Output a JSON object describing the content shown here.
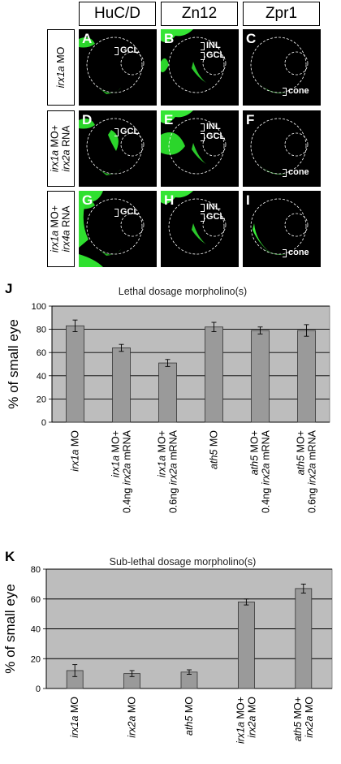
{
  "figure": {
    "columns": [
      "HuC/D",
      "Zn12",
      "Zpr1"
    ],
    "rows": [
      {
        "gene": "irx1a",
        "rest": " MO",
        "line2_gene": "",
        "line2_rest": ""
      },
      {
        "gene": "irx1a",
        "rest": " MO+",
        "line2_gene": "irx2a",
        "line2_rest": " RNA"
      },
      {
        "gene": "irx1a",
        "rest": " MO+",
        "line2_gene": "irx4a",
        "line2_rest": " RNA"
      }
    ],
    "panels": [
      {
        "letter": "A",
        "labels": [
          "GCL"
        ]
      },
      {
        "letter": "B",
        "labels": [
          "INL",
          "GCL"
        ]
      },
      {
        "letter": "C",
        "labels": [
          "cone"
        ]
      },
      {
        "letter": "D",
        "labels": [
          "GCL"
        ]
      },
      {
        "letter": "E",
        "labels": [
          "INL",
          "GCL"
        ]
      },
      {
        "letter": "F",
        "labels": [
          "cone"
        ]
      },
      {
        "letter": "G",
        "labels": [
          "GCL"
        ]
      },
      {
        "letter": "H",
        "labels": [
          "INL",
          "GCL"
        ]
      },
      {
        "letter": "I",
        "labels": [
          "cone"
        ]
      }
    ]
  },
  "chart_data": [
    {
      "panel_label": "J",
      "type": "bar",
      "title": "Lethal dosage morpholino(s)",
      "ylabel": "% of small eye",
      "ylim": [
        0,
        100
      ],
      "yticks": [
        0,
        20,
        40,
        60,
        80,
        100
      ],
      "grid": true,
      "bar_color": "#9a9a9a",
      "plot_background": "#bdbdbd",
      "categories": [
        [
          {
            "t": "irx1a",
            "i": true
          },
          {
            "t": " MO",
            "i": false
          }
        ],
        [
          {
            "t": "irx1a",
            "i": true
          },
          {
            "t": " MO+",
            "i": false
          },
          {
            "br": true
          },
          {
            "t": "0.4ng ",
            "i": false
          },
          {
            "t": "irx2a",
            "i": true
          },
          {
            "t": " mRNA",
            "i": false
          }
        ],
        [
          {
            "t": "irx1a",
            "i": true
          },
          {
            "t": " MO+",
            "i": false
          },
          {
            "br": true
          },
          {
            "t": "0.6ng ",
            "i": false
          },
          {
            "t": "irx2a",
            "i": true
          },
          {
            "t": " mRNA",
            "i": false
          }
        ],
        [
          {
            "t": "ath5",
            "i": true
          },
          {
            "t": " MO",
            "i": false
          }
        ],
        [
          {
            "t": "ath5",
            "i": true
          },
          {
            "t": " MO+",
            "i": false
          },
          {
            "br": true
          },
          {
            "t": "0.4ng ",
            "i": false
          },
          {
            "t": "irx2a",
            "i": true
          },
          {
            "t": " mRNA",
            "i": false
          }
        ],
        [
          {
            "t": "ath5",
            "i": true
          },
          {
            "t": " MO+",
            "i": false
          },
          {
            "br": true
          },
          {
            "t": "0.6ng ",
            "i": false
          },
          {
            "t": "irx2a",
            "i": true
          },
          {
            "t": " mRNA",
            "i": false
          }
        ]
      ],
      "values": [
        83,
        64,
        51,
        82,
        79,
        79
      ],
      "errors": [
        5,
        3,
        3,
        4,
        3,
        5
      ]
    },
    {
      "panel_label": "K",
      "type": "bar",
      "title": "Sub-lethal dosage morpholino(s)",
      "ylabel": "% of small eye",
      "ylim": [
        0,
        80
      ],
      "yticks": [
        0,
        20,
        40,
        60,
        80
      ],
      "grid": true,
      "bar_color": "#9a9a9a",
      "plot_background": "#bdbdbd",
      "categories": [
        [
          {
            "t": "irx1a",
            "i": true
          },
          {
            "t": " MO",
            "i": false
          }
        ],
        [
          {
            "t": "irx2a",
            "i": true
          },
          {
            "t": " MO",
            "i": false
          }
        ],
        [
          {
            "t": "ath5",
            "i": true
          },
          {
            "t": " MO",
            "i": false
          }
        ],
        [
          {
            "t": "irx1a",
            "i": true
          },
          {
            "t": " MO+",
            "i": false
          },
          {
            "br": true
          },
          {
            "t": "irx2a",
            "i": true
          },
          {
            "t": " MO",
            "i": false
          }
        ],
        [
          {
            "t": "ath5",
            "i": true
          },
          {
            "t": " MO+",
            "i": false
          },
          {
            "br": true
          },
          {
            "t": "irx2a",
            "i": true
          },
          {
            "t": " MO",
            "i": false
          }
        ]
      ],
      "values": [
        12,
        10,
        11,
        58,
        67
      ],
      "errors": [
        4,
        2,
        1.5,
        2,
        3
      ]
    }
  ]
}
